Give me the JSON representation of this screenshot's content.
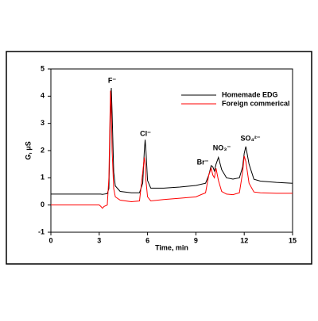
{
  "chart_data": {
    "type": "line",
    "x_label": "Time, min",
    "y_label": "G, μS",
    "xlim": [
      0,
      15
    ],
    "xticks": [
      0,
      3,
      6,
      9,
      12,
      15
    ],
    "ylim": [
      -1,
      5
    ],
    "yticks": [
      -1,
      0,
      1,
      2,
      3,
      4,
      5
    ],
    "legend": "upper right",
    "annotations": [
      "F⁻",
      "Cl⁻",
      "Br⁻",
      "NO₃⁻",
      "SO₄²⁻"
    ],
    "x": [
      0,
      1,
      2,
      3,
      3.1,
      3.2,
      3.3,
      3.5,
      3.6,
      3.7,
      3.75,
      3.8,
      3.9,
      4.0,
      4.3,
      5.0,
      5.5,
      5.7,
      5.8,
      5.85,
      5.9,
      6.0,
      6.2,
      7,
      8,
      9,
      9.6,
      9.8,
      9.95,
      10.05,
      10.15,
      10.25,
      10.4,
      10.6,
      10.9,
      11.3,
      11.7,
      11.9,
      12.0,
      12.1,
      12.3,
      12.6,
      13,
      14,
      15
    ],
    "series": [
      {
        "name": "Homemade EDG",
        "color": "#000000",
        "values": [
          0.4,
          0.4,
          0.4,
          0.4,
          0.4,
          0.39,
          0.4,
          0.42,
          0.6,
          3.5,
          4.3,
          3.4,
          1.2,
          0.7,
          0.5,
          0.45,
          0.45,
          0.8,
          2.0,
          2.4,
          2.0,
          0.9,
          0.62,
          0.62,
          0.66,
          0.72,
          0.8,
          1.1,
          1.45,
          1.4,
          1.25,
          1.5,
          1.75,
          1.3,
          1.0,
          0.95,
          1.0,
          1.4,
          1.9,
          2.15,
          1.5,
          0.95,
          0.88,
          0.83,
          0.8
        ]
      },
      {
        "name": "Foreign commerical",
        "color": "#ff0000",
        "values": [
          0,
          0,
          0,
          0,
          -0.05,
          -0.12,
          -0.05,
          0,
          1.0,
          4.2,
          3.6,
          2.0,
          0.6,
          0.3,
          0.18,
          0.12,
          0.15,
          1.2,
          1.75,
          1.5,
          0.9,
          0.3,
          0.15,
          0.2,
          0.25,
          0.3,
          0.45,
          1.1,
          1.35,
          1.1,
          1.0,
          1.35,
          0.9,
          0.5,
          0.4,
          0.38,
          0.45,
          1.2,
          1.8,
          1.6,
          0.8,
          0.48,
          0.45,
          0.43,
          0.43
        ]
      }
    ]
  }
}
